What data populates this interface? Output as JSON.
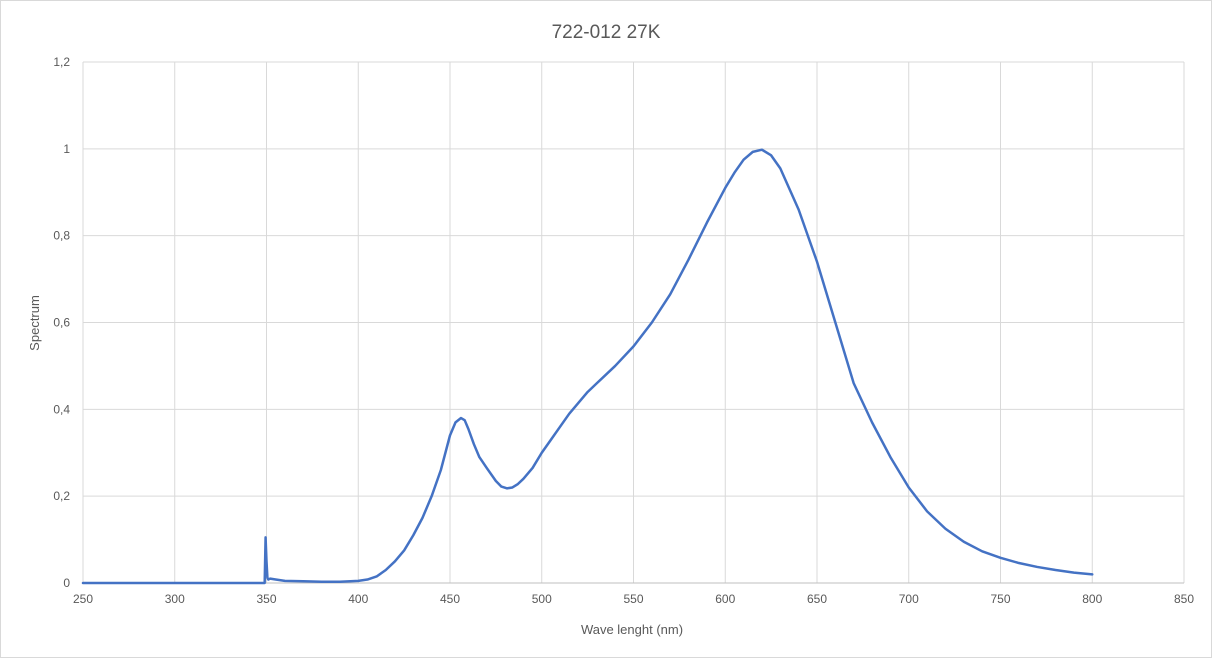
{
  "chart_data": {
    "type": "line",
    "title": "722-012 27K",
    "xlabel": "Wave lenght (nm)",
    "ylabel": "Spectrum",
    "xlim": [
      250,
      850
    ],
    "ylim": [
      0,
      1.2
    ],
    "x_ticks": [
      250,
      300,
      350,
      400,
      450,
      500,
      550,
      600,
      650,
      700,
      750,
      800,
      850
    ],
    "x_tick_labels": [
      "250",
      "300",
      "350",
      "400",
      "450",
      "500",
      "550",
      "600",
      "650",
      "700",
      "750",
      "800",
      "850"
    ],
    "y_ticks": [
      0,
      0.2,
      0.4,
      0.6,
      0.8,
      1.0,
      1.2
    ],
    "y_tick_labels": [
      "0",
      "0,2",
      "0,4",
      "0,6",
      "0,8",
      "1",
      "1,2"
    ],
    "grid": true,
    "legend": "none",
    "series": [
      {
        "color": "#4472C4",
        "x": [
          250,
          300,
          349,
          349.5,
          350,
          350.5,
          351,
          352,
          355,
          360,
          370,
          380,
          390,
          400,
          405,
          410,
          415,
          420,
          425,
          430,
          435,
          440,
          445,
          450,
          453,
          456,
          458,
          460,
          463,
          466,
          470,
          475,
          478,
          481,
          484,
          487,
          490,
          495,
          500,
          505,
          510,
          515,
          520,
          525,
          530,
          540,
          550,
          560,
          570,
          580,
          590,
          600,
          605,
          610,
          615,
          620,
          625,
          630,
          640,
          650,
          660,
          670,
          680,
          690,
          700,
          710,
          720,
          730,
          740,
          750,
          760,
          770,
          780,
          790,
          800
        ],
        "y": [
          0,
          0,
          0,
          0.105,
          0.05,
          0.012,
          0.008,
          0.01,
          0.008,
          0.005,
          0.004,
          0.003,
          0.003,
          0.005,
          0.008,
          0.015,
          0.03,
          0.05,
          0.075,
          0.11,
          0.15,
          0.2,
          0.26,
          0.34,
          0.37,
          0.38,
          0.375,
          0.355,
          0.32,
          0.29,
          0.265,
          0.235,
          0.222,
          0.218,
          0.22,
          0.228,
          0.24,
          0.265,
          0.3,
          0.33,
          0.36,
          0.39,
          0.415,
          0.44,
          0.46,
          0.5,
          0.545,
          0.6,
          0.665,
          0.745,
          0.83,
          0.91,
          0.945,
          0.975,
          0.993,
          0.998,
          0.985,
          0.955,
          0.86,
          0.74,
          0.6,
          0.46,
          0.37,
          0.29,
          0.22,
          0.165,
          0.125,
          0.095,
          0.073,
          0.058,
          0.046,
          0.037,
          0.03,
          0.024,
          0.02
        ]
      }
    ]
  }
}
